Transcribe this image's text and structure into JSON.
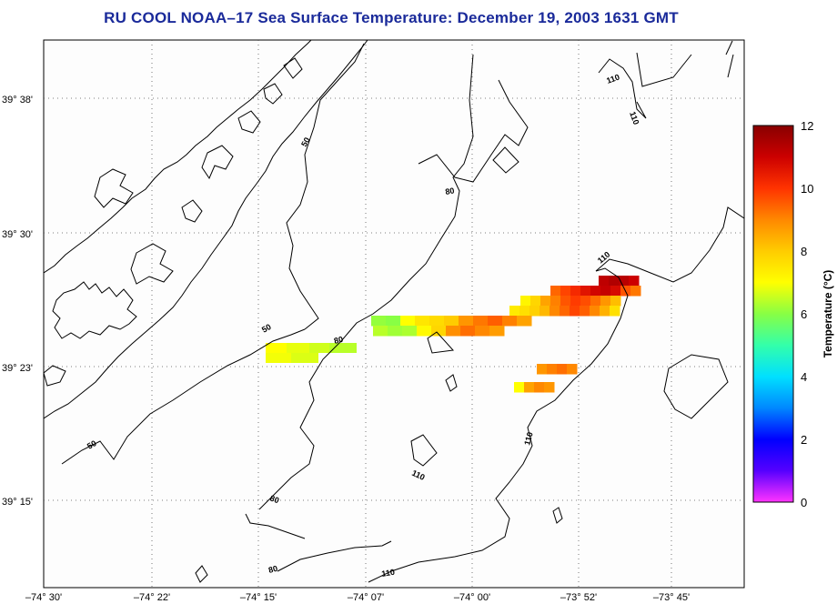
{
  "title": "RU COOL  NOAA–17  Sea Surface Temperature:  December 19, 2003 1631 GMT",
  "map": {
    "lon_ticks": [
      "–74° 30'",
      "–74° 22'",
      "–74° 15'",
      "–74° 07'",
      "–74° 00'",
      "–73° 52'",
      "–73° 45'"
    ],
    "lat_ticks": [
      "39° 38'",
      "39° 30'",
      "39° 23'",
      "39° 15'"
    ],
    "contour_labels": [
      "50",
      "50",
      "50",
      "80",
      "80",
      "80",
      "80",
      "110",
      "110",
      "110",
      "110",
      "110",
      "110"
    ]
  },
  "colorbar": {
    "label": "Temperature (°C)",
    "ticks": [
      "12",
      "10",
      "8",
      "6",
      "4",
      "2",
      "0"
    ],
    "min": 0,
    "max": 12,
    "stops": [
      "#ff33ff",
      "#5500ff",
      "#0000ff",
      "#0088ff",
      "#00e0ff",
      "#33ffaa",
      "#88ff44",
      "#ffff00",
      "#ffcc00",
      "#ff8800",
      "#ff3300",
      "#cc0000",
      "#880000"
    ]
  },
  "sst_patch_values": [
    {
      "row": 0,
      "values": [
        11.2,
        11.4,
        11.3,
        11.0
      ]
    },
    {
      "row": 1,
      "values": [
        9.4,
        9.8,
        10.2,
        10.6,
        10.9,
        11.1,
        10.8,
        9.6,
        9.2
      ]
    },
    {
      "row": 2,
      "values": [
        7.2,
        7.8,
        8.6,
        9.1,
        9.6,
        9.9,
        9.7,
        9.3,
        8.8,
        8.2
      ]
    },
    {
      "row": 3,
      "values": [
        7.4,
        7.6,
        7.9,
        8.3,
        9.0,
        9.4,
        9.8,
        9.5,
        9.0,
        8.4,
        7.6
      ]
    },
    {
      "row": 4,
      "values": [
        6.1,
        6.0,
        7.0,
        7.5,
        7.7,
        8.0,
        8.8,
        9.2,
        9.5,
        9.1,
        8.6
      ]
    },
    {
      "row": 5,
      "values": [
        6.4,
        6.2,
        6.3,
        7.1,
        7.8,
        8.9,
        9.3,
        9.0,
        8.7
      ]
    },
    {
      "row": 6,
      "values": [
        8.8,
        9.1,
        9.3,
        9.0
      ]
    },
    {
      "row": 7,
      "values": [
        7.0,
        8.6,
        9.0,
        8.8
      ]
    }
  ]
}
